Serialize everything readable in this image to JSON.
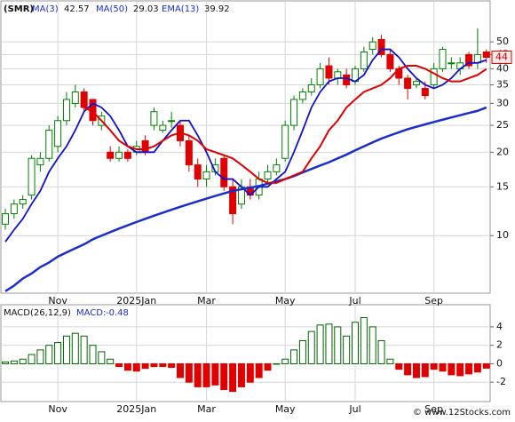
{
  "chart_data": [
    {
      "type": "candlestick",
      "title": "(SMR)",
      "categories": [
        null,
        null,
        null,
        null,
        null,
        null,
        "Nov",
        null,
        null,
        null,
        null,
        null,
        null,
        null,
        null,
        "2025Jan",
        null,
        null,
        null,
        null,
        null,
        null,
        null,
        "Mar",
        null,
        null,
        null,
        null,
        null,
        null,
        null,
        null,
        "May",
        null,
        null,
        null,
        null,
        null,
        null,
        null,
        "Jul",
        null,
        null,
        null,
        null,
        null,
        null,
        null,
        null,
        "Sep",
        null,
        null,
        null,
        null,
        null,
        null
      ],
      "open": [
        11,
        12,
        13,
        14,
        18,
        19,
        21,
        26,
        30,
        33,
        31,
        25,
        20,
        19,
        20,
        20,
        22,
        25,
        24,
        26,
        25,
        22,
        18,
        16,
        17,
        19,
        15,
        13,
        15,
        14,
        16,
        17,
        19,
        25,
        31,
        33,
        35,
        41,
        37,
        38,
        36,
        40,
        47,
        51,
        45,
        40,
        37,
        35,
        34,
        35,
        40,
        42,
        40,
        45,
        42,
        46
      ],
      "high": [
        12.5,
        13.5,
        14,
        19.5,
        20,
        25,
        27,
        33,
        35,
        34,
        31,
        28,
        21,
        21,
        20.5,
        22,
        23,
        29,
        26,
        28,
        26,
        23,
        19,
        18,
        19,
        19.5,
        16,
        16,
        16,
        17,
        18,
        19,
        26,
        32,
        34,
        37,
        42,
        44,
        40,
        40,
        41,
        48,
        52,
        53,
        47,
        41,
        38,
        37,
        36,
        42,
        48,
        44,
        44,
        46,
        56,
        47
      ],
      "low": [
        10.5,
        11.5,
        12.5,
        13.5,
        17,
        18.5,
        20,
        25,
        29,
        28,
        25,
        24,
        18.5,
        18.5,
        18.5,
        19.5,
        19.5,
        24,
        23.5,
        24.5,
        21,
        17,
        15,
        15,
        16.5,
        14.5,
        11,
        12.5,
        13.5,
        13.5,
        15.5,
        16.5,
        18.5,
        24,
        30,
        32,
        34,
        35,
        35,
        34,
        35,
        39,
        45,
        44,
        39,
        35,
        31,
        34,
        31,
        34,
        39,
        40,
        38,
        40,
        40,
        42
      ],
      "close": [
        12,
        13,
        13.5,
        19,
        19,
        24,
        26,
        31,
        33,
        29,
        26,
        27,
        19,
        20,
        19,
        21,
        20,
        28,
        25,
        26,
        22,
        18,
        16,
        17,
        18,
        15,
        12,
        15,
        14,
        16,
        17,
        18,
        25,
        31,
        33,
        35,
        40,
        37,
        39,
        35,
        40,
        46,
        50,
        45,
        40,
        37,
        34,
        36,
        32,
        40,
        47,
        42,
        42,
        41,
        45,
        44
      ],
      "up_color": "#008000",
      "down_color": "#e00000",
      "series": [
        {
          "name": "MA(3)",
          "current": 42.57,
          "color": "#1010d0",
          "values": [
            9.5,
            10.5,
            11.5,
            13,
            14.5,
            17,
            19,
            21,
            24,
            28,
            30,
            29,
            27,
            24,
            21,
            20,
            20,
            20,
            22,
            24,
            26,
            26,
            23,
            20,
            17,
            16,
            16,
            15,
            14,
            15,
            15,
            16,
            17,
            20,
            24,
            29,
            33,
            36,
            37,
            37,
            36,
            38,
            43,
            47,
            47,
            44,
            40,
            37,
            35,
            34,
            35,
            37,
            40,
            42,
            42,
            43
          ]
        },
        {
          "name": "MA(50)",
          "current": 29.03,
          "color": "#1a2ed0",
          "values": [
            6.3,
            6.6,
            7.0,
            7.3,
            7.7,
            8.0,
            8.4,
            8.7,
            9.0,
            9.3,
            9.7,
            10.0,
            10.3,
            10.6,
            10.9,
            11.2,
            11.5,
            11.8,
            12.1,
            12.4,
            12.7,
            13.0,
            13.3,
            13.6,
            13.9,
            14.2,
            14.5,
            14.7,
            14.9,
            15.1,
            15.4,
            15.7,
            16.0,
            16.4,
            16.9,
            17.4,
            17.9,
            18.4,
            19.0,
            19.6,
            20.3,
            21.0,
            21.7,
            22.4,
            23.0,
            23.6,
            24.2,
            24.7,
            25.2,
            25.7,
            26.2,
            26.7,
            27.2,
            27.7,
            28.2,
            29.0
          ]
        },
        {
          "name": "EMA(13)",
          "current": 39.92,
          "color": "#e00000",
          "values": [
            null,
            null,
            null,
            null,
            null,
            null,
            null,
            null,
            null,
            29,
            28,
            26,
            24,
            22,
            21,
            20.5,
            20.5,
            21,
            22,
            23,
            23.5,
            23,
            22,
            20.5,
            20,
            19.5,
            19,
            18,
            17,
            16,
            15.5,
            15.5,
            16,
            16.5,
            17,
            19,
            21,
            24,
            26,
            29,
            31,
            33,
            34,
            35,
            37,
            40,
            41,
            41,
            40,
            38.5,
            37,
            36,
            36,
            37,
            38,
            39.92
          ]
        }
      ],
      "ylim": [
        6.2,
        70.3
      ],
      "yticks": [
        10,
        15,
        20,
        25,
        30,
        35,
        40,
        45,
        50
      ],
      "log_scale": true,
      "grid": true,
      "last_price": 44
    },
    {
      "type": "bar",
      "title": "MACD(26,12,9)",
      "categories": [
        null,
        null,
        null,
        null,
        null,
        null,
        "Nov",
        null,
        null,
        null,
        null,
        null,
        null,
        null,
        null,
        "2025Jan",
        null,
        null,
        null,
        null,
        null,
        null,
        null,
        "Mar",
        null,
        null,
        null,
        null,
        null,
        null,
        null,
        null,
        "May",
        null,
        null,
        null,
        null,
        null,
        null,
        null,
        "Jul",
        null,
        null,
        null,
        null,
        null,
        null,
        null,
        null,
        "Sep",
        null,
        null,
        null,
        null,
        null,
        null
      ],
      "series": [
        {
          "name": "MACD:",
          "current": -0.48,
          "up_color": "#006400",
          "down_color": "#e00000",
          "values": [
            0.2,
            0.3,
            0.5,
            1,
            1.5,
            2,
            2.3,
            3,
            3.3,
            3,
            2,
            1.3,
            0.5,
            -0.3,
            -0.7,
            -0.8,
            -0.5,
            -0.3,
            -0.3,
            -0.4,
            -1.5,
            -2,
            -2.5,
            -2.5,
            -2.3,
            -2.8,
            -3,
            -2.5,
            -2,
            -1.5,
            -0.7,
            0,
            0.5,
            1.5,
            2.5,
            3.5,
            4.2,
            4.3,
            4,
            3,
            4.5,
            5,
            4,
            2.5,
            0.5,
            -0.6,
            -1.2,
            -1.5,
            -1.4,
            -0.6,
            -0.8,
            -1.2,
            -1.3,
            -1.1,
            -0.9,
            -0.48
          ]
        }
      ],
      "ylim": [
        -4.1,
        6.4
      ],
      "yticks": [
        4,
        2,
        0,
        -2
      ],
      "grid": true
    }
  ],
  "footer": "© www.12Stocks.com"
}
